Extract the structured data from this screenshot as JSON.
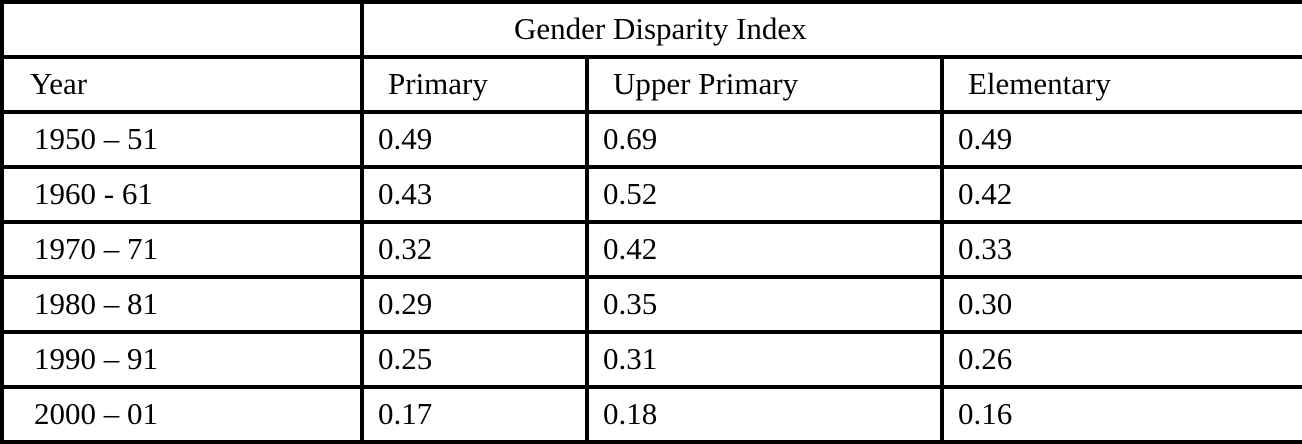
{
  "chart_data": {
    "type": "table",
    "title": "Gender Disparity Index",
    "columns": [
      "Year",
      "Primary",
      "Upper Primary",
      "Elementary"
    ],
    "rows": [
      [
        "1950 – 51",
        "0.49",
        "0.69",
        "0.49"
      ],
      [
        "1960 - 61",
        "0.43",
        "0.52",
        "0.42"
      ],
      [
        "1970 – 71",
        "0.32",
        "0.42",
        "0.33"
      ],
      [
        "1980 – 81",
        "0.29",
        "0.35",
        "0.30"
      ],
      [
        "1990 – 91",
        "0.25",
        "0.31",
        "0.26"
      ],
      [
        "2000 – 01",
        "0.17",
        "0.18",
        "0.16"
      ]
    ],
    "categories": [
      "1950 – 51",
      "1960 - 61",
      "1970 – 71",
      "1980 – 81",
      "1990 – 91",
      "2000 – 01"
    ],
    "series": [
      {
        "name": "Primary",
        "values": [
          0.49,
          0.43,
          0.32,
          0.29,
          0.25,
          0.17
        ]
      },
      {
        "name": "Upper Primary",
        "values": [
          0.69,
          0.52,
          0.42,
          0.35,
          0.31,
          0.18
        ]
      },
      {
        "name": "Elementary",
        "values": [
          0.49,
          0.42,
          0.33,
          0.3,
          0.26,
          0.16
        ]
      }
    ],
    "border_color": "#000000",
    "background_color": "#ffffff",
    "text_color": "#000000"
  }
}
